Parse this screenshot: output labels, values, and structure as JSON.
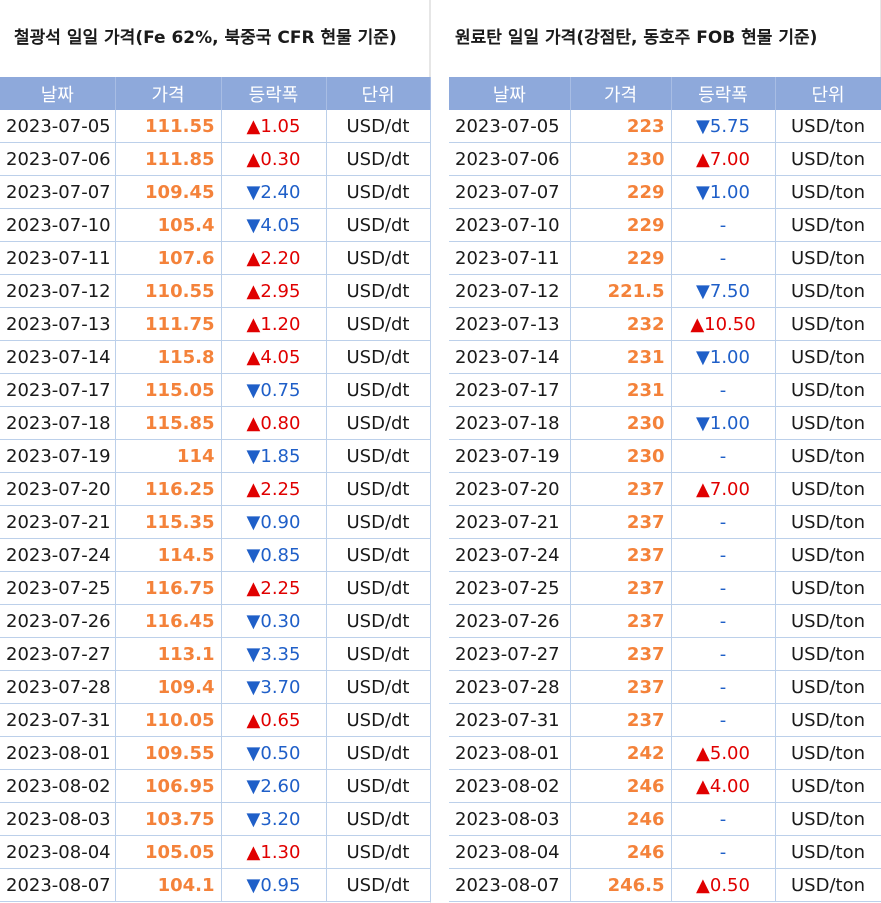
{
  "iron_ore": {
    "title": "철광석 일일 가격(Fe 62%, 북중국 CFR 현물 기준)",
    "headers": [
      "날짜",
      "가격",
      "등락폭",
      "단위"
    ],
    "rows": [
      {
        "date": "2023-07-05",
        "price": "111.55",
        "change": "▲1.05",
        "dir": "up",
        "unit": "USD/dt"
      },
      {
        "date": "2023-07-06",
        "price": "111.85",
        "change": "▲0.30",
        "dir": "up",
        "unit": "USD/dt"
      },
      {
        "date": "2023-07-07",
        "price": "109.45",
        "change": "▼2.40",
        "dir": "down",
        "unit": "USD/dt"
      },
      {
        "date": "2023-07-10",
        "price": "105.4",
        "change": "▼4.05",
        "dir": "down",
        "unit": "USD/dt"
      },
      {
        "date": "2023-07-11",
        "price": "107.6",
        "change": "▲2.20",
        "dir": "up",
        "unit": "USD/dt"
      },
      {
        "date": "2023-07-12",
        "price": "110.55",
        "change": "▲2.95",
        "dir": "up",
        "unit": "USD/dt"
      },
      {
        "date": "2023-07-13",
        "price": "111.75",
        "change": "▲1.20",
        "dir": "up",
        "unit": "USD/dt"
      },
      {
        "date": "2023-07-14",
        "price": "115.8",
        "change": "▲4.05",
        "dir": "up",
        "unit": "USD/dt"
      },
      {
        "date": "2023-07-17",
        "price": "115.05",
        "change": "▼0.75",
        "dir": "down",
        "unit": "USD/dt"
      },
      {
        "date": "2023-07-18",
        "price": "115.85",
        "change": "▲0.80",
        "dir": "up",
        "unit": "USD/dt"
      },
      {
        "date": "2023-07-19",
        "price": "114",
        "change": "▼1.85",
        "dir": "down",
        "unit": "USD/dt"
      },
      {
        "date": "2023-07-20",
        "price": "116.25",
        "change": "▲2.25",
        "dir": "up",
        "unit": "USD/dt"
      },
      {
        "date": "2023-07-21",
        "price": "115.35",
        "change": "▼0.90",
        "dir": "down",
        "unit": "USD/dt"
      },
      {
        "date": "2023-07-24",
        "price": "114.5",
        "change": "▼0.85",
        "dir": "down",
        "unit": "USD/dt"
      },
      {
        "date": "2023-07-25",
        "price": "116.75",
        "change": "▲2.25",
        "dir": "up",
        "unit": "USD/dt"
      },
      {
        "date": "2023-07-26",
        "price": "116.45",
        "change": "▼0.30",
        "dir": "down",
        "unit": "USD/dt"
      },
      {
        "date": "2023-07-27",
        "price": "113.1",
        "change": "▼3.35",
        "dir": "down",
        "unit": "USD/dt"
      },
      {
        "date": "2023-07-28",
        "price": "109.4",
        "change": "▼3.70",
        "dir": "down",
        "unit": "USD/dt"
      },
      {
        "date": "2023-07-31",
        "price": "110.05",
        "change": "▲0.65",
        "dir": "up",
        "unit": "USD/dt"
      },
      {
        "date": "2023-08-01",
        "price": "109.55",
        "change": "▼0.50",
        "dir": "down",
        "unit": "USD/dt"
      },
      {
        "date": "2023-08-02",
        "price": "106.95",
        "change": "▼2.60",
        "dir": "down",
        "unit": "USD/dt"
      },
      {
        "date": "2023-08-03",
        "price": "103.75",
        "change": "▼3.20",
        "dir": "down",
        "unit": "USD/dt"
      },
      {
        "date": "2023-08-04",
        "price": "105.05",
        "change": "▲1.30",
        "dir": "up",
        "unit": "USD/dt"
      },
      {
        "date": "2023-08-07",
        "price": "104.1",
        "change": "▼0.95",
        "dir": "down",
        "unit": "USD/dt"
      }
    ]
  },
  "coal": {
    "title": "원료탄 일일 가격(강점탄, 동호주 FOB 현물 기준)",
    "headers": [
      "날짜",
      "가격",
      "등락폭",
      "단위"
    ],
    "rows": [
      {
        "date": "2023-07-05",
        "price": "223",
        "change": "▼5.75",
        "dir": "down",
        "unit": "USD/ton"
      },
      {
        "date": "2023-07-06",
        "price": "230",
        "change": "▲7.00",
        "dir": "up",
        "unit": "USD/ton"
      },
      {
        "date": "2023-07-07",
        "price": "229",
        "change": "▼1.00",
        "dir": "down",
        "unit": "USD/ton"
      },
      {
        "date": "2023-07-10",
        "price": "229",
        "change": "-",
        "dir": "flat",
        "unit": "USD/ton"
      },
      {
        "date": "2023-07-11",
        "price": "229",
        "change": "-",
        "dir": "flat",
        "unit": "USD/ton"
      },
      {
        "date": "2023-07-12",
        "price": "221.5",
        "change": "▼7.50",
        "dir": "down",
        "unit": "USD/ton"
      },
      {
        "date": "2023-07-13",
        "price": "232",
        "change": "▲10.50",
        "dir": "up",
        "unit": "USD/ton"
      },
      {
        "date": "2023-07-14",
        "price": "231",
        "change": "▼1.00",
        "dir": "down",
        "unit": "USD/ton"
      },
      {
        "date": "2023-07-17",
        "price": "231",
        "change": "-",
        "dir": "flat",
        "unit": "USD/ton"
      },
      {
        "date": "2023-07-18",
        "price": "230",
        "change": "▼1.00",
        "dir": "down",
        "unit": "USD/ton"
      },
      {
        "date": "2023-07-19",
        "price": "230",
        "change": "-",
        "dir": "flat",
        "unit": "USD/ton"
      },
      {
        "date": "2023-07-20",
        "price": "237",
        "change": "▲7.00",
        "dir": "up",
        "unit": "USD/ton"
      },
      {
        "date": "2023-07-21",
        "price": "237",
        "change": "-",
        "dir": "flat",
        "unit": "USD/ton"
      },
      {
        "date": "2023-07-24",
        "price": "237",
        "change": "-",
        "dir": "flat",
        "unit": "USD/ton"
      },
      {
        "date": "2023-07-25",
        "price": "237",
        "change": "-",
        "dir": "flat",
        "unit": "USD/ton"
      },
      {
        "date": "2023-07-26",
        "price": "237",
        "change": "-",
        "dir": "flat",
        "unit": "USD/ton"
      },
      {
        "date": "2023-07-27",
        "price": "237",
        "change": "-",
        "dir": "flat",
        "unit": "USD/ton"
      },
      {
        "date": "2023-07-28",
        "price": "237",
        "change": "-",
        "dir": "flat",
        "unit": "USD/ton"
      },
      {
        "date": "2023-07-31",
        "price": "237",
        "change": "-",
        "dir": "flat",
        "unit": "USD/ton"
      },
      {
        "date": "2023-08-01",
        "price": "242",
        "change": "▲5.00",
        "dir": "up",
        "unit": "USD/ton"
      },
      {
        "date": "2023-08-02",
        "price": "246",
        "change": "▲4.00",
        "dir": "up",
        "unit": "USD/ton"
      },
      {
        "date": "2023-08-03",
        "price": "246",
        "change": "-",
        "dir": "flat",
        "unit": "USD/ton"
      },
      {
        "date": "2023-08-04",
        "price": "246",
        "change": "-",
        "dir": "flat",
        "unit": "USD/ton"
      },
      {
        "date": "2023-08-07",
        "price": "246.5",
        "change": "▲0.50",
        "dir": "up",
        "unit": "USD/ton"
      }
    ]
  },
  "colors": {
    "header_bg": "#8ea9db",
    "price": "#f4823a",
    "up": "#e00000",
    "down": "#1f5fc8",
    "grid": "#bcd0ea"
  }
}
